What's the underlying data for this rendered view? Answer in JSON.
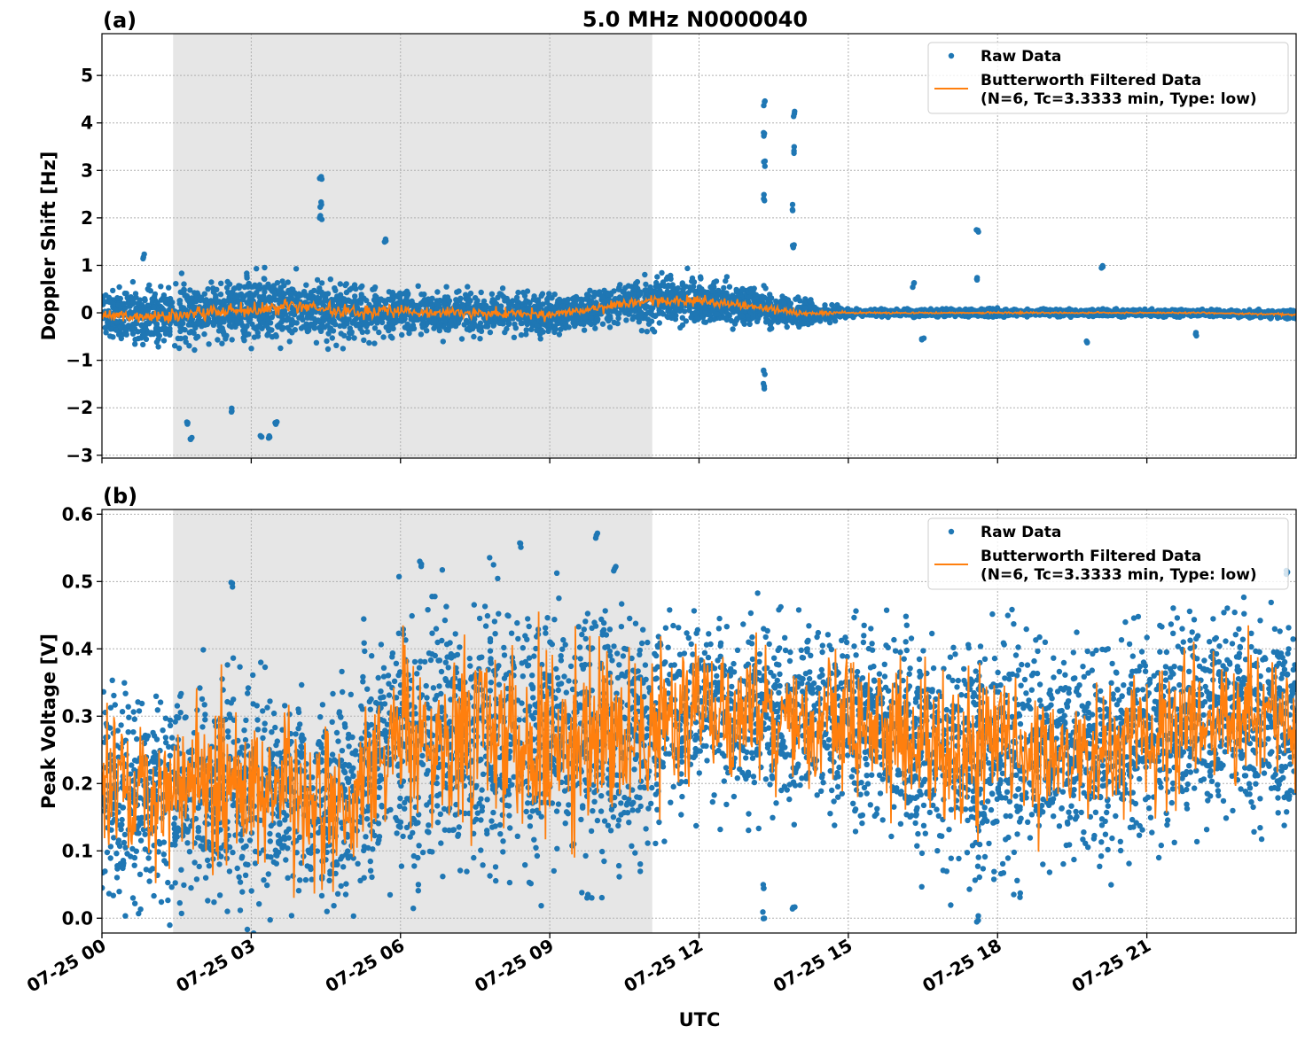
{
  "title": "5.0 MHz N0000040",
  "xlabel": "UTC",
  "x_tick_labels": [
    "07-25 00",
    "07-25 03",
    "07-25 06",
    "07-25 09",
    "07-25 12",
    "07-25 15",
    "07-25 18",
    "07-25 21"
  ],
  "legend": {
    "raw": "Raw Data",
    "filtered_line1": "Butterworth Filtered Data",
    "filtered_line2": "(N=6, Tc=3.3333 min, Type: low)"
  },
  "colors": {
    "raw": "#1f77b4",
    "filtered": "#ff7f0e",
    "shade": "#e6e6e6"
  },
  "chart_data": [
    {
      "type": "scatter",
      "panel_label": "(a)",
      "ylabel": "Doppler Shift [Hz]",
      "xlim_hours": [
        0,
        24
      ],
      "ylim": [
        -3.06,
        5.88
      ],
      "y_ticks": [
        -3,
        -2,
        -1,
        0,
        1,
        2,
        3,
        4,
        5
      ],
      "y_tick_labels": [
        "−3",
        "−2",
        "−1",
        "0",
        "1",
        "2",
        "3",
        "4",
        "5"
      ],
      "grid": true,
      "legend_position": "top-right",
      "shaded_interval_hours": [
        1.43,
        11.06
      ],
      "hourly_center": [
        -0.05,
        -0.1,
        0.0,
        0.05,
        0.15,
        0.0,
        0.05,
        0.0,
        0.0,
        -0.05,
        0.1,
        0.25,
        0.25,
        0.15,
        0.0,
        0.0,
        0.0,
        0.0,
        0.0,
        0.0,
        0.0,
        0.0,
        0.0,
        -0.02
      ],
      "hourly_spread": [
        0.45,
        0.6,
        0.7,
        0.75,
        0.7,
        0.6,
        0.5,
        0.45,
        0.4,
        0.4,
        0.4,
        0.5,
        0.5,
        0.4,
        0.3,
        0.08,
        0.07,
        0.08,
        0.08,
        0.07,
        0.07,
        0.07,
        0.07,
        0.08
      ],
      "spikes": [
        [
          0.85,
          1.25
        ],
        [
          1.8,
          -2.6
        ],
        [
          1.7,
          -2.25
        ],
        [
          2.6,
          -2.0
        ],
        [
          3.2,
          -2.5
        ],
        [
          3.35,
          -2.55
        ],
        [
          3.5,
          -2.2
        ],
        [
          4.4,
          2.95
        ],
        [
          4.4,
          2.35
        ],
        [
          4.4,
          2.05
        ],
        [
          5.7,
          1.55
        ],
        [
          13.3,
          4.5
        ],
        [
          13.3,
          3.8
        ],
        [
          13.3,
          3.2
        ],
        [
          13.3,
          2.5
        ],
        [
          13.3,
          -1.45
        ],
        [
          13.3,
          -1.2
        ],
        [
          13.9,
          4.25
        ],
        [
          13.9,
          3.5
        ],
        [
          13.9,
          2.3
        ],
        [
          13.9,
          1.5
        ],
        [
          17.6,
          1.85
        ],
        [
          17.6,
          0.75
        ],
        [
          20.1,
          1.0
        ],
        [
          19.8,
          -0.5
        ],
        [
          16.3,
          0.65
        ],
        [
          16.5,
          -0.5
        ],
        [
          22.0,
          -0.35
        ]
      ]
    },
    {
      "type": "scatter",
      "panel_label": "(b)",
      "ylabel": "Peak Voltage [V]",
      "xlim_hours": [
        0,
        24
      ],
      "ylim": [
        -0.022,
        0.607
      ],
      "y_ticks": [
        0.0,
        0.1,
        0.2,
        0.3,
        0.4,
        0.5,
        0.6
      ],
      "y_tick_labels": [
        "0.0",
        "0.1",
        "0.2",
        "0.3",
        "0.4",
        "0.5",
        "0.6"
      ],
      "grid": true,
      "legend_position": "top-right",
      "shaded_interval_hours": [
        1.43,
        11.06
      ],
      "hourly_center": [
        0.2,
        0.18,
        0.2,
        0.19,
        0.18,
        0.17,
        0.27,
        0.27,
        0.28,
        0.27,
        0.27,
        0.28,
        0.31,
        0.3,
        0.3,
        0.29,
        0.27,
        0.24,
        0.24,
        0.25,
        0.24,
        0.27,
        0.3,
        0.3
      ],
      "hourly_spread": [
        0.15,
        0.15,
        0.17,
        0.17,
        0.17,
        0.17,
        0.2,
        0.2,
        0.2,
        0.2,
        0.2,
        0.17,
        0.13,
        0.15,
        0.13,
        0.13,
        0.15,
        0.17,
        0.17,
        0.16,
        0.16,
        0.15,
        0.15,
        0.15
      ],
      "spikes": [
        [
          9.95,
          0.575
        ],
        [
          8.4,
          0.56
        ],
        [
          13.3,
          0.01
        ],
        [
          13.3,
          0.05
        ],
        [
          13.9,
          0.02
        ],
        [
          17.6,
          0.005
        ],
        [
          23.8,
          0.52
        ],
        [
          2.6,
          0.5
        ],
        [
          6.4,
          0.53
        ],
        [
          10.3,
          0.525
        ]
      ]
    }
  ]
}
